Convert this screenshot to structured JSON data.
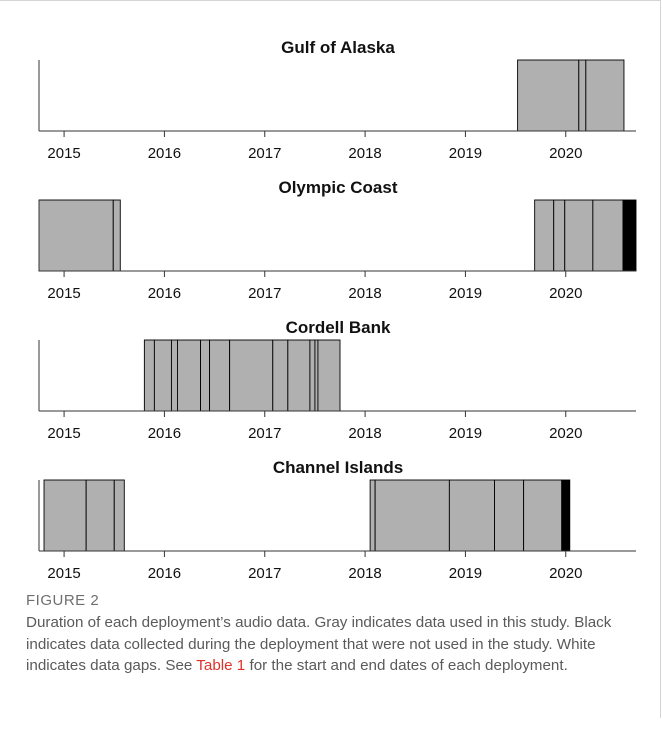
{
  "colors": {
    "used": "#b0b0b0",
    "unused": "#000000",
    "gap": "#ffffff",
    "link": "#e0322b"
  },
  "chart_data": [
    {
      "type": "timeline",
      "title": "Gulf of Alaska",
      "xlabel": "",
      "ylabel": "",
      "x_ticks": [
        "2015",
        "2016",
        "2017",
        "2018",
        "2019",
        "2020"
      ],
      "xlim": [
        2014.75,
        2020.7
      ],
      "segments": [
        {
          "start": 2019.52,
          "end": 2020.13,
          "status": "used"
        },
        {
          "start": 2020.13,
          "end": 2020.2,
          "status": "used"
        },
        {
          "start": 2020.2,
          "end": 2020.58,
          "status": "used"
        }
      ]
    },
    {
      "type": "timeline",
      "title": "Olympic Coast",
      "xlabel": "",
      "ylabel": "",
      "x_ticks": [
        "2015",
        "2016",
        "2017",
        "2018",
        "2019",
        "2020"
      ],
      "xlim": [
        2014.75,
        2020.7
      ],
      "segments": [
        {
          "start": 2014.75,
          "end": 2015.49,
          "status": "used"
        },
        {
          "start": 2015.49,
          "end": 2015.56,
          "status": "used"
        },
        {
          "start": 2019.69,
          "end": 2019.88,
          "status": "used"
        },
        {
          "start": 2019.88,
          "end": 2019.99,
          "status": "used"
        },
        {
          "start": 2019.99,
          "end": 2020.27,
          "status": "used"
        },
        {
          "start": 2020.27,
          "end": 2020.57,
          "status": "used"
        },
        {
          "start": 2020.57,
          "end": 2020.7,
          "status": "unused"
        }
      ]
    },
    {
      "type": "timeline",
      "title": "Cordell Bank",
      "xlabel": "",
      "ylabel": "",
      "x_ticks": [
        "2015",
        "2016",
        "2017",
        "2018",
        "2019",
        "2020"
      ],
      "xlim": [
        2014.75,
        2020.7
      ],
      "segments": [
        {
          "start": 2015.8,
          "end": 2015.9,
          "status": "used"
        },
        {
          "start": 2015.9,
          "end": 2016.07,
          "status": "used"
        },
        {
          "start": 2016.07,
          "end": 2016.13,
          "status": "used"
        },
        {
          "start": 2016.13,
          "end": 2016.36,
          "status": "used"
        },
        {
          "start": 2016.36,
          "end": 2016.45,
          "status": "used"
        },
        {
          "start": 2016.45,
          "end": 2016.65,
          "status": "used"
        },
        {
          "start": 2016.65,
          "end": 2017.08,
          "status": "used"
        },
        {
          "start": 2017.08,
          "end": 2017.23,
          "status": "used"
        },
        {
          "start": 2017.23,
          "end": 2017.45,
          "status": "used"
        },
        {
          "start": 2017.45,
          "end": 2017.5,
          "status": "used"
        },
        {
          "start": 2017.5,
          "end": 2017.53,
          "status": "used"
        },
        {
          "start": 2017.53,
          "end": 2017.75,
          "status": "used"
        }
      ]
    },
    {
      "type": "timeline",
      "title": "Channel Islands",
      "xlabel": "",
      "ylabel": "",
      "x_ticks": [
        "2015",
        "2016",
        "2017",
        "2018",
        "2019",
        "2020"
      ],
      "xlim": [
        2014.75,
        2020.7
      ],
      "segments": [
        {
          "start": 2014.8,
          "end": 2015.22,
          "status": "used"
        },
        {
          "start": 2015.22,
          "end": 2015.5,
          "status": "used"
        },
        {
          "start": 2015.5,
          "end": 2015.6,
          "status": "used"
        },
        {
          "start": 2018.05,
          "end": 2018.1,
          "status": "used"
        },
        {
          "start": 2018.1,
          "end": 2018.84,
          "status": "used"
        },
        {
          "start": 2018.84,
          "end": 2019.29,
          "status": "used"
        },
        {
          "start": 2019.29,
          "end": 2019.58,
          "status": "used"
        },
        {
          "start": 2019.58,
          "end": 2019.96,
          "status": "used"
        },
        {
          "start": 2019.96,
          "end": 2020.04,
          "status": "unused"
        }
      ]
    }
  ],
  "caption": {
    "label": "FIGURE 2",
    "text_before": "Duration of each deployment’s audio data. Gray indicates data used in this study. Black indicates data collected during the deployment that were not used in the study. White indicates data gaps. See ",
    "link": "Table 1",
    "text_after": " for the start and end dates of each deployment."
  }
}
